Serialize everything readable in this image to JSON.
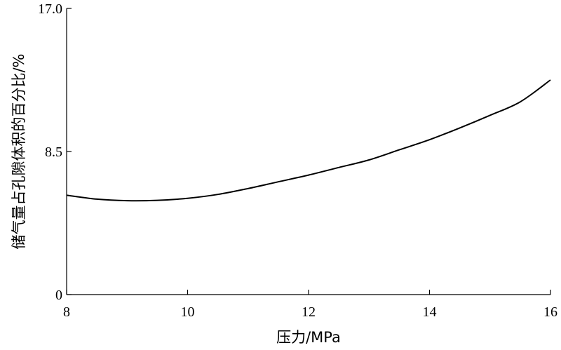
{
  "chart_data": {
    "type": "line",
    "xlabel": "压力/MPa",
    "ylabel": "储气量占孔隙体积的百分比/%",
    "xlim": [
      8,
      16
    ],
    "ylim": [
      0,
      17.0
    ],
    "x_ticks": [
      8,
      10,
      12,
      14,
      16
    ],
    "x_tick_labels": [
      "8",
      "10",
      "12",
      "14",
      "16"
    ],
    "y_ticks": [
      0,
      8.5,
      17.0
    ],
    "y_tick_labels": [
      "0",
      "8.5",
      "17.0"
    ],
    "grid": false,
    "series": [
      {
        "x": [
          8.0,
          8.5,
          9.0,
          9.5,
          10.0,
          10.5,
          11.0,
          11.5,
          12.0,
          12.5,
          13.0,
          13.5,
          14.0,
          14.5,
          15.0,
          15.5,
          16.0
        ],
        "y": [
          5.9,
          5.67,
          5.58,
          5.6,
          5.72,
          5.95,
          6.3,
          6.7,
          7.1,
          7.55,
          8.0,
          8.6,
          9.2,
          9.9,
          10.65,
          11.45,
          12.75
        ]
      }
    ]
  }
}
